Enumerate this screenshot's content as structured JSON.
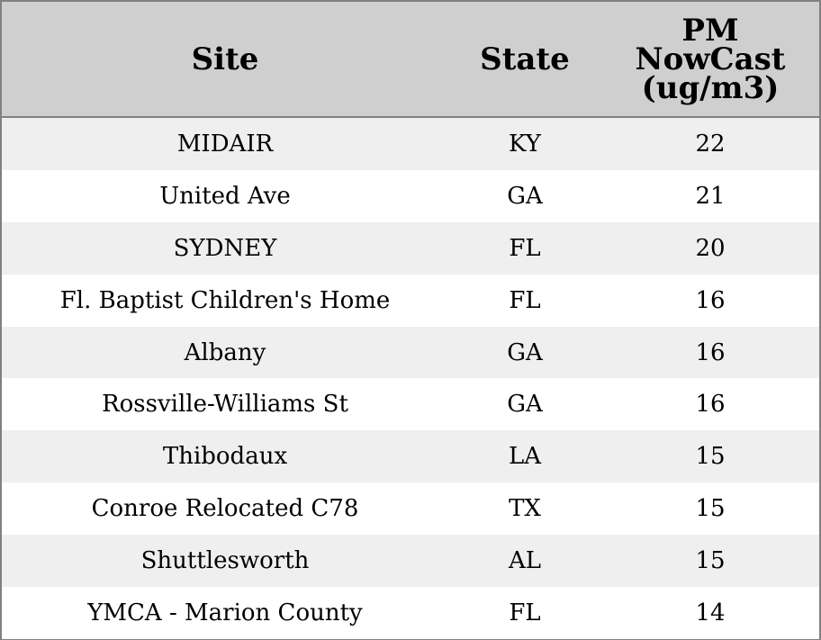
{
  "chart_data": {
    "type": "table",
    "columns": [
      "Site",
      "State",
      "PM\nNowCast\n(ug/m3)"
    ],
    "rows": [
      {
        "site": "MIDAIR",
        "state": "KY",
        "pm": "22"
      },
      {
        "site": "United Ave",
        "state": "GA",
        "pm": "21"
      },
      {
        "site": "SYDNEY",
        "state": "FL",
        "pm": "20"
      },
      {
        "site": "Fl. Baptist Children's Home",
        "state": "FL",
        "pm": "16"
      },
      {
        "site": "Albany",
        "state": "GA",
        "pm": "16"
      },
      {
        "site": "Rossville-Williams St",
        "state": "GA",
        "pm": "16"
      },
      {
        "site": "Thibodaux",
        "state": "LA",
        "pm": "15"
      },
      {
        "site": "Conroe Relocated C78",
        "state": "TX",
        "pm": "15"
      },
      {
        "site": "Shuttlesworth",
        "state": "AL",
        "pm": "15"
      },
      {
        "site": "YMCA - Marion County",
        "state": "FL",
        "pm": "14"
      }
    ]
  },
  "colors": {
    "header_bg": "#cfcfcf",
    "stripe_bg": "#efefef",
    "row_bg": "#ffffff",
    "border": "#808080"
  }
}
